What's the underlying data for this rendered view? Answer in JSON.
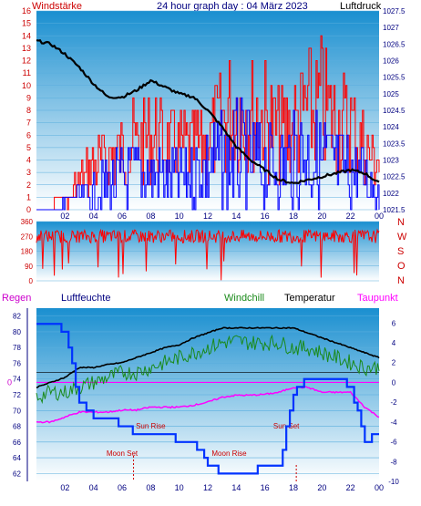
{
  "header": {
    "left_label": "Windstärke",
    "title": "24 hour graph day : 04 März 2023",
    "right_label": "Luftdruck"
  },
  "lower_header": {
    "regen": "Regen",
    "luftfeuchte": "Luftfeuchte",
    "windchill": "Windchill",
    "temperatur": "Temperatur",
    "taupunkt": "Taupunkt"
  },
  "colors": {
    "sky_top": "#1a8fd0",
    "sky_bottom": "#ffffff",
    "wind": "#ff0000",
    "gust": "#0000ff",
    "pressure": "#000000",
    "humidity": "#0033ff",
    "windchill": "#1a8a1a",
    "temperature": "#000000",
    "dewpoint": "#ff00ff",
    "regen_label": "#cc00cc",
    "axis_left": "#cc0000",
    "axis_right": "#000080",
    "lower_left_axis": "#000080",
    "sun_text": "#cc0000"
  },
  "chart_data": [
    {
      "type": "line",
      "name": "wind-pressure",
      "x_ticks": [
        "02",
        "04",
        "06",
        "08",
        "10",
        "12",
        "14",
        "16",
        "18",
        "20",
        "22",
        "00"
      ],
      "left_ticks": [
        "0",
        "1",
        "2",
        "3",
        "4",
        "5",
        "6",
        "7",
        "8",
        "9",
        "10",
        "11",
        "12",
        "13",
        "14",
        "15",
        "16"
      ],
      "right_ticks": [
        "1021.5",
        "1022",
        "1022.5",
        "1023",
        "1023.5",
        "1024",
        "1024.5",
        "1025",
        "1025.5",
        "1026",
        "1026.5",
        "1027",
        "1027.5"
      ],
      "left_ylim": [
        0,
        16
      ],
      "right_ylim": [
        1021.5,
        1027.5
      ],
      "pressure_x_hours": [
        0,
        1,
        2,
        3,
        4,
        5,
        6,
        7,
        8,
        9,
        10,
        11,
        12,
        13,
        14,
        15,
        16,
        17,
        18,
        19,
        20,
        21,
        22,
        23,
        24
      ],
      "pressure_values": [
        1026.6,
        1026.5,
        1026.2,
        1025.8,
        1025.3,
        1024.9,
        1024.9,
        1025.1,
        1025.4,
        1025.2,
        1025.0,
        1024.9,
        1024.5,
        1024.0,
        1023.4,
        1023.0,
        1022.7,
        1022.4,
        1022.3,
        1022.4,
        1022.5,
        1022.6,
        1022.7,
        1022.6,
        1022.3
      ],
      "wind_max_envelope": [
        0,
        0,
        1,
        4,
        6,
        7,
        8,
        9,
        10,
        9,
        8,
        8,
        9,
        12,
        14,
        13,
        12,
        10,
        11,
        13,
        14,
        12,
        11,
        8,
        6
      ],
      "gust_envelope": [
        0,
        0,
        1,
        2,
        3,
        4,
        5,
        6,
        6,
        5,
        5,
        6,
        7,
        8,
        9,
        8,
        7,
        7,
        8,
        9,
        8,
        7,
        6,
        5,
        3
      ]
    },
    {
      "type": "scatter",
      "name": "wind-direction",
      "y_ticks": [
        "360",
        "270",
        "180",
        "90",
        "0"
      ],
      "ylim": [
        0,
        360
      ],
      "dir_labels": [
        "N",
        "W",
        "S",
        "O",
        "N"
      ],
      "typical_direction": 270
    },
    {
      "type": "line",
      "name": "humidity-temperature",
      "left_ticks": [
        "62",
        "64",
        "66",
        "68",
        "70",
        "72",
        "74",
        "76",
        "78",
        "80",
        "82"
      ],
      "left_ylim": [
        61,
        83
      ],
      "right_ticks": [
        "-10",
        "-8",
        "-6",
        "-4",
        "-2",
        "0",
        "2",
        "4",
        "6"
      ],
      "right_ylim": [
        -10,
        7.5
      ],
      "regen_value": "0",
      "annotations": [
        "Sun Rise",
        "Moon Set",
        "Sun Set",
        "Moon Rise"
      ],
      "x_hours": [
        0,
        1,
        2,
        3,
        4,
        5,
        6,
        7,
        8,
        9,
        10,
        11,
        12,
        13,
        14,
        15,
        16,
        17,
        18,
        19,
        20,
        21,
        22,
        23,
        24
      ],
      "humidity": [
        81,
        81,
        80,
        71,
        69,
        69,
        68,
        67,
        67,
        67,
        66,
        66,
        63,
        62,
        62,
        62,
        63,
        63,
        72,
        74,
        74,
        74,
        73,
        66,
        67
      ],
      "temperature": [
        -0.5,
        0,
        0.5,
        1.5,
        1.5,
        1.8,
        2,
        2.5,
        3,
        3.5,
        3.8,
        4.5,
        5,
        5.5,
        5.5,
        5.5,
        5.5,
        5.5,
        5.5,
        5,
        4.5,
        4,
        3.5,
        3,
        2.5
      ],
      "windchill": [
        -1.5,
        -1,
        -1,
        -0.5,
        0,
        0.5,
        1,
        1,
        1.5,
        2,
        2.5,
        3,
        3.5,
        4,
        4.2,
        4,
        4,
        4,
        3.5,
        3.5,
        3,
        2.5,
        2,
        1.5,
        1.5
      ],
      "dewpoint": [
        -4,
        -4,
        -3.5,
        -3,
        -3,
        -3,
        -2.8,
        -2.8,
        -2.5,
        -2.5,
        -2.5,
        -2.3,
        -2,
        -1.5,
        -1.3,
        -1.3,
        -1.2,
        -1,
        -0.5,
        -0.5,
        -1,
        -1,
        -1,
        -2.5,
        -3.5
      ]
    }
  ]
}
